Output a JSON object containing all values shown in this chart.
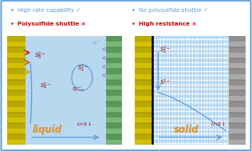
{
  "fig_bg": "#cce0f0",
  "border_color": "#5b9bd5",
  "white_bg": "#ffffff",
  "left_panel": {
    "liquid_color": "#b8d8f0",
    "electrode_left_color1": "#d4c000",
    "electrode_left_color2": "#b8aa00",
    "electrode_right_color1": "#7ab87a",
    "electrode_right_color2": "#5a985a",
    "liquid_label": "liquid",
    "liquid_label_color": "#e09020",
    "bullet1_color": "#5b9bd5",
    "bullet1_text": "High rate capability ✓",
    "bullet2_color": "#cc0000",
    "bullet2_text": "Polysulfide shuttle ×",
    "arrow_colors": [
      "#cc2200",
      "#dd5500",
      "#ccaa00"
    ],
    "curve_color": "#5b9bd5",
    "species_color": "#8B0000",
    "li_color": "#8888bb"
  },
  "right_panel": {
    "solid_color": "#b8d8f0",
    "electrode_left_color1": "#d4c000",
    "electrode_left_color2": "#b8aa00",
    "electrode_right_color1": "#aaaaaa",
    "electrode_right_color2": "#909090",
    "solid_label": "solid",
    "solid_label_color": "#e09020",
    "bullet1_color": "#5b9bd5",
    "bullet1_text": "No polysulfide shuttle ✓",
    "bullet2_color": "#cc0000",
    "bullet2_text": "High resistance ×",
    "curve_color": "#5b9bd5",
    "species_color": "#8B0000",
    "sep_color": "#000000"
  }
}
